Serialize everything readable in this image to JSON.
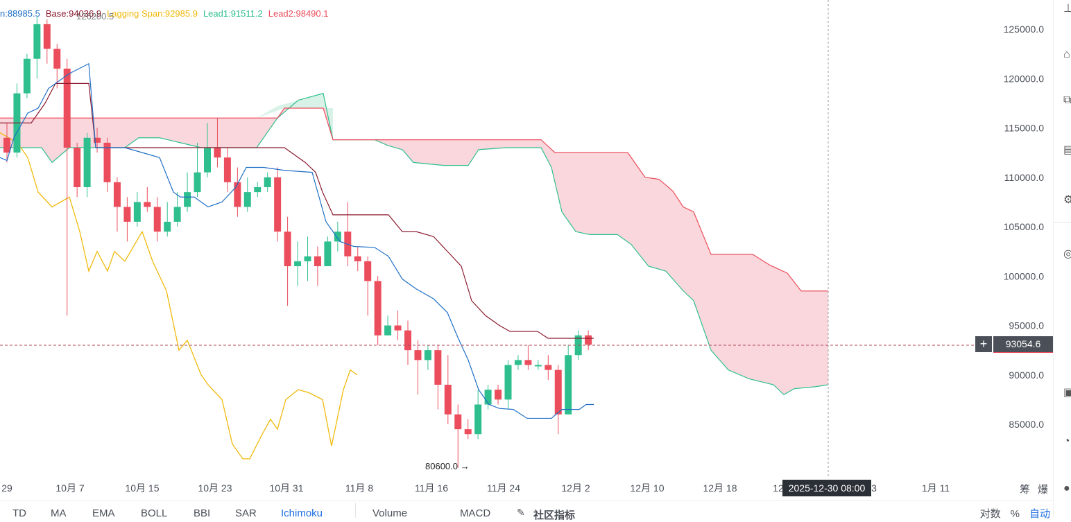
{
  "legend": {
    "conversion": "n:88985.5",
    "base": "Base:94036.9",
    "lagging": "Lagging Span:92985.9",
    "lead1": "Lead1:91511.2",
    "lead2": "Lead2:98490.1",
    "overlap": "126200.5"
  },
  "colors": {
    "up": "#2fbf8f",
    "down": "#eb4d5c",
    "conversion": "#1f6fc6",
    "base": "#8b1a2e",
    "lagging": "#f0b90b",
    "lead1": "#2fbf8f",
    "lead2": "#eb4d5c",
    "cloud_bear": "#f8d0d6",
    "cloud_bull": "#d8f2e7",
    "active": "#1e6fe0"
  },
  "price_axis": [
    "125000.0",
    "120000.0",
    "115000.0",
    "110000.0",
    "105000.0",
    "100000.0",
    "95000.0",
    "90000.0",
    "85000.0"
  ],
  "time_axis": [
    "29",
    "10月 7",
    "10月 15",
    "10月 23",
    "10月 31",
    "11月 8",
    "11月 16",
    "11月 24",
    "12月 2",
    "12月 10",
    "12月 18",
    "12",
    "3",
    "1月 11"
  ],
  "current_price": "93054.6",
  "crosshair_date": "2025-12-30 08:00",
  "low_marker": "80600.0",
  "low_arrow": "→",
  "crosshair_plus": "+",
  "bottom_tabs": [
    "TD",
    "MA",
    "EMA",
    "BOLL",
    "BBI",
    "SAR",
    "Ichimoku",
    "Volume",
    "MACD",
    "社区指标"
  ],
  "active_tab": "Ichimoku",
  "scale_buttons": [
    "对数",
    "%",
    "自动"
  ],
  "side_labels": [
    "筹",
    "爆"
  ],
  "right_toolbar_icons": [
    "line-tool-icon",
    "zoom-icon",
    "measure-icon",
    "calendar-icon",
    "settings-icon",
    "magnet-icon",
    "screenshot-icon",
    "alert-icon",
    "cursor-icon"
  ],
  "chart_data": {
    "type": "candlestick",
    "ylim": [
      79500,
      128000
    ],
    "candles": [
      [
        114000,
        112500,
        115500,
        111500
      ],
      [
        112500,
        118500,
        119500,
        112000
      ],
      [
        118500,
        122000,
        122500,
        118000
      ],
      [
        122000,
        125500,
        126200,
        120000
      ],
      [
        125500,
        123000,
        126000,
        121500
      ],
      [
        123000,
        121000,
        123500,
        119000
      ],
      [
        121000,
        113000,
        122000,
        96000
      ],
      [
        113000,
        109000,
        113500,
        108000
      ],
      [
        109000,
        114000,
        114500,
        108000
      ],
      [
        114000,
        113500,
        115000,
        112500
      ],
      [
        113500,
        109500,
        114000,
        108500
      ],
      [
        109500,
        107000,
        110000,
        104500
      ],
      [
        107000,
        105500,
        108000,
        103500
      ],
      [
        105500,
        107500,
        108500,
        105000
      ],
      [
        107500,
        107000,
        109000,
        106500
      ],
      [
        107000,
        104500,
        108000,
        103500
      ],
      [
        104500,
        105500,
        107500,
        104000
      ],
      [
        105500,
        107000,
        108500,
        105000
      ],
      [
        107000,
        108500,
        110500,
        106500
      ],
      [
        108500,
        110500,
        113500,
        108000
      ],
      [
        110500,
        113000,
        115500,
        110000
      ],
      [
        113000,
        112000,
        116000,
        111000
      ],
      [
        112000,
        109500,
        113000,
        108500
      ],
      [
        109500,
        107000,
        111000,
        106000
      ],
      [
        107000,
        108500,
        110000,
        106500
      ],
      [
        108500,
        109000,
        109500,
        108000
      ],
      [
        109000,
        110000,
        110500,
        108500
      ],
      [
        110000,
        104500,
        111000,
        103500
      ],
      [
        104500,
        101000,
        106000,
        97000
      ],
      [
        101000,
        101500,
        103500,
        99000
      ],
      [
        101500,
        102000,
        104000,
        99500
      ],
      [
        102000,
        101000,
        103000,
        99000
      ],
      [
        101000,
        103500,
        104000,
        101000
      ],
      [
        103500,
        104500,
        105500,
        102500
      ],
      [
        104500,
        102000,
        107500,
        101000
      ],
      [
        102000,
        101500,
        103000,
        100500
      ],
      [
        101500,
        99500,
        102000,
        96000
      ],
      [
        99500,
        94000,
        100000,
        93000
      ],
      [
        94000,
        95000,
        96000,
        94000
      ],
      [
        95000,
        94500,
        96500,
        93500
      ],
      [
        94500,
        92500,
        95500,
        91000
      ],
      [
        92500,
        91500,
        93500,
        88000
      ],
      [
        91500,
        92500,
        93000,
        90500
      ],
      [
        92500,
        89000,
        93000,
        86500
      ],
      [
        89000,
        86000,
        92000,
        85000
      ],
      [
        86000,
        84500,
        87000,
        80600
      ],
      [
        84500,
        84000,
        85500,
        83500
      ],
      [
        84000,
        87000,
        88500,
        83500
      ],
      [
        87000,
        88500,
        89000,
        86500
      ],
      [
        88500,
        87500,
        89000,
        87000
      ],
      [
        87500,
        91000,
        91500,
        86500
      ],
      [
        91000,
        91500,
        92000,
        90500
      ],
      [
        91500,
        91000,
        93000,
        90500
      ],
      [
        91000,
        91000,
        91500,
        90500
      ],
      [
        91000,
        90500,
        92000,
        89500
      ],
      [
        90500,
        86000,
        91000,
        84000
      ],
      [
        86000,
        92000,
        93000,
        86000
      ],
      [
        92000,
        94000,
        94500,
        91500
      ],
      [
        94000,
        93054,
        94500,
        92500
      ]
    ]
  }
}
